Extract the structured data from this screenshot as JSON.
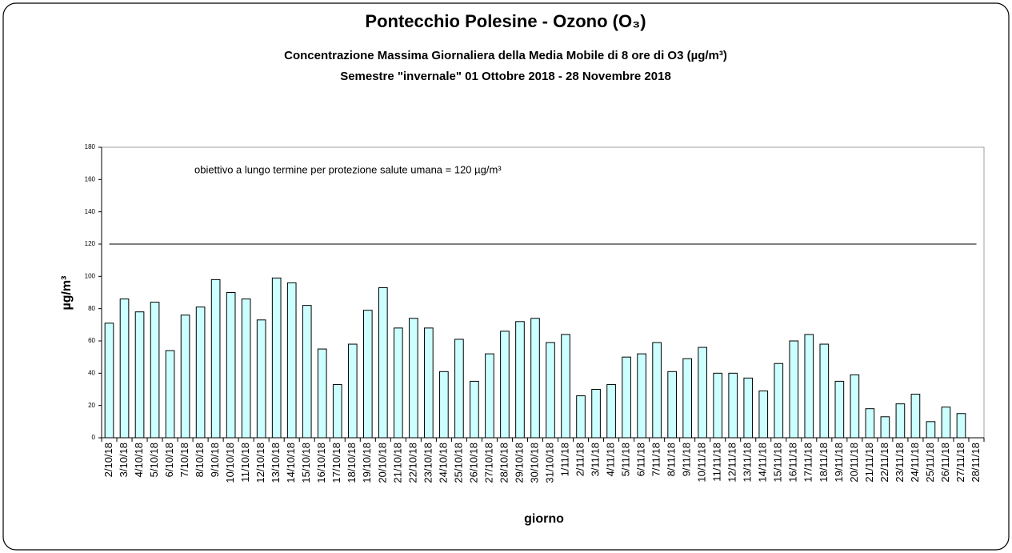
{
  "chart_data": {
    "type": "bar",
    "title": "Pontecchio Polesine - Ozono (O₃)",
    "subtitle": [
      "Concentrazione Massima Giornaliera della Media Mobile di 8 ore di O3 (µg/m³)",
      "Semestre \"invernale\" 01 Ottobre 2018 - 28 Novembre 2018"
    ],
    "annotation": "obiettivo a lungo termine per protezione salute umana = 120 µg/m³",
    "threshold": 120,
    "x_label": "giorno",
    "y_label": "µg/m³",
    "categories": [
      "2/10/18",
      "3/10/18",
      "4/10/18",
      "5/10/18",
      "6/10/18",
      "7/10/18",
      "8/10/18",
      "9/10/18",
      "10/10/18",
      "11/10/18",
      "12/10/18",
      "13/10/18",
      "14/10/18",
      "15/10/18",
      "16/10/18",
      "17/10/18",
      "18/10/18",
      "19/10/18",
      "20/10/18",
      "21/10/18",
      "22/10/18",
      "23/10/18",
      "24/10/18",
      "25/10/18",
      "26/10/18",
      "27/10/18",
      "28/10/18",
      "29/10/18",
      "30/10/18",
      "31/10/18",
      "1/11/18",
      "2/11/18",
      "3/11/18",
      "4/11/18",
      "5/11/18",
      "6/11/18",
      "7/11/18",
      "8/11/18",
      "9/11/18",
      "10/11/18",
      "11/11/18",
      "12/11/18",
      "13/11/18",
      "14/11/18",
      "15/11/18",
      "16/11/18",
      "17/11/18",
      "18/11/18",
      "19/11/18",
      "20/11/18",
      "21/11/18",
      "22/11/18",
      "23/11/18",
      "24/11/18",
      "25/11/18",
      "26/11/18",
      "27/11/18",
      "28/11/18"
    ],
    "values": [
      71,
      86,
      78,
      84,
      54,
      76,
      81,
      98,
      90,
      86,
      73,
      99,
      96,
      82,
      55,
      33,
      58,
      79,
      93,
      68,
      74,
      68,
      41,
      61,
      35,
      52,
      66,
      72,
      74,
      59,
      64,
      26,
      30,
      33,
      50,
      52,
      59,
      41,
      49,
      56,
      40,
      40,
      37,
      29,
      46,
      60,
      64,
      58,
      35,
      39,
      18,
      13,
      21,
      27,
      10,
      19,
      15,
      null
    ],
    "color": "#ccffff",
    "ylim": [
      0,
      180
    ],
    "yticks": [
      0,
      20,
      40,
      60,
      80,
      100,
      120,
      140,
      160,
      180
    ],
    "grid": false
  }
}
